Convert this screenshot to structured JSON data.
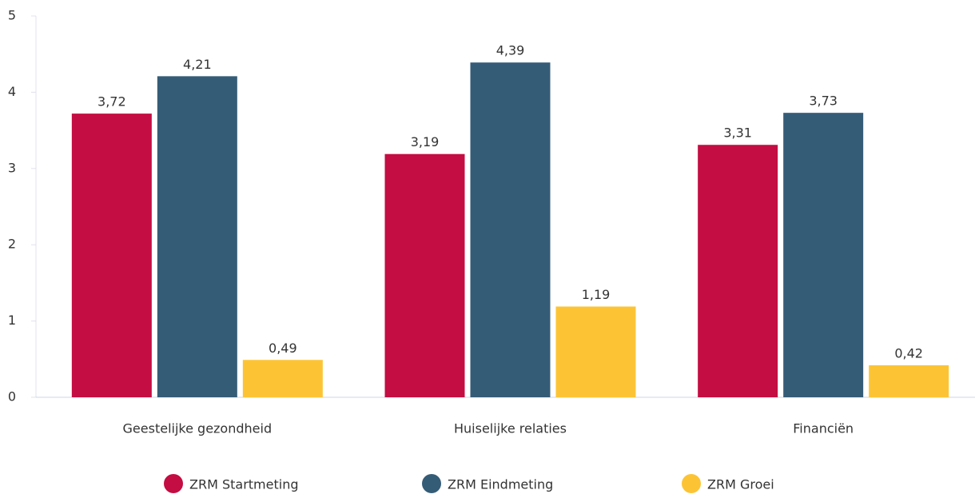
{
  "chart_data": {
    "type": "bar",
    "categories": [
      "Geestelijke gezondheid",
      "Huiselijke relaties",
      "Financiën"
    ],
    "series": [
      {
        "name": "ZRM Startmeting",
        "color": "#c40d42",
        "values": [
          3.72,
          3.19,
          3.31
        ],
        "value_labels": [
          "3,72",
          "3,19",
          "3,31"
        ]
      },
      {
        "name": "ZRM Eindmeting",
        "color": "#355c77",
        "values": [
          4.21,
          4.39,
          3.73
        ],
        "value_labels": [
          "4,21",
          "4,39",
          "3,73"
        ]
      },
      {
        "name": "ZRM Groei",
        "color": "#fcc435",
        "values": [
          0.49,
          1.19,
          0.42
        ],
        "value_labels": [
          "0,49",
          "1,19",
          "0,42"
        ]
      }
    ],
    "ylim": [
      0,
      5
    ],
    "yticks": [
      0,
      1,
      2,
      3,
      4,
      5
    ],
    "grid": false,
    "legend": "bottom"
  }
}
